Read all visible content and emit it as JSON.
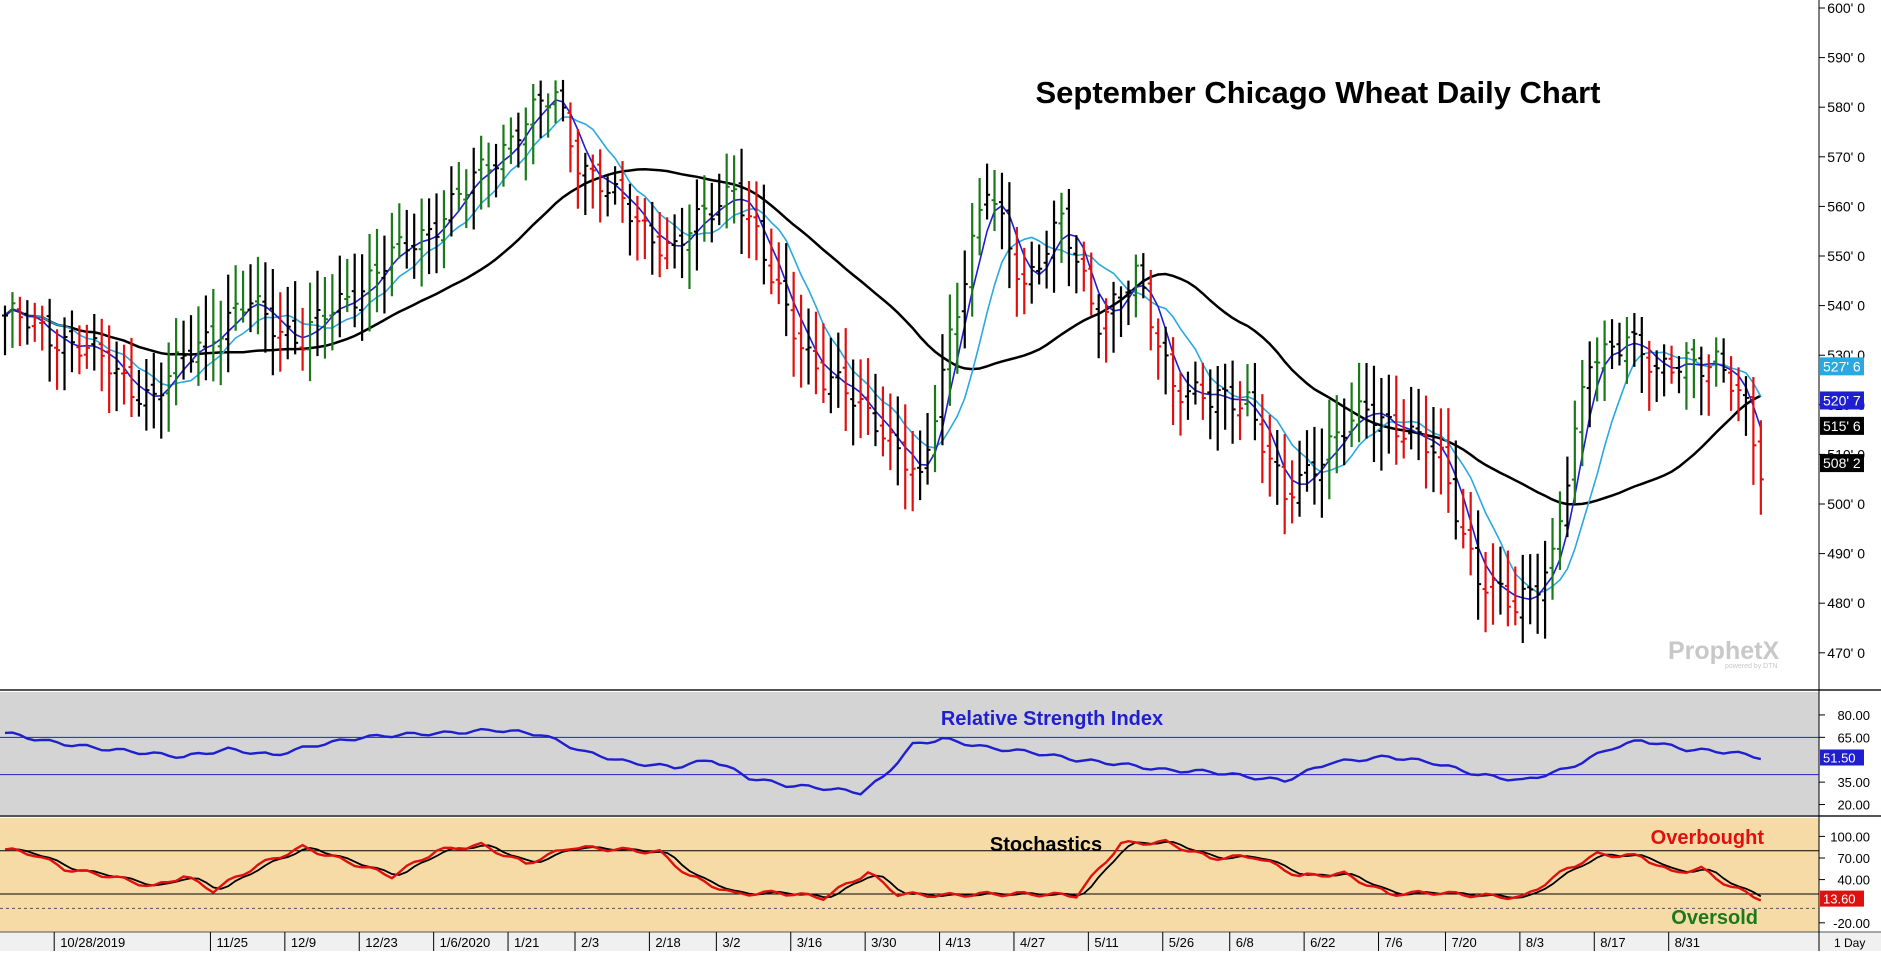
{
  "chart_data": [
    {
      "type": "ohlc-bar",
      "title": "September Chicago Wheat Daily Chart",
      "watermark": "ProphetX",
      "watermark_sub": "powered by DTN",
      "y_range": [
        465,
        600
      ],
      "y_ticks": [
        "600' 0",
        "590' 0",
        "580' 0",
        "570' 0",
        "560' 0",
        "550' 0",
        "540' 0",
        "530' 0",
        "520' 0",
        "510' 0",
        "500' 0",
        "490' 0",
        "480' 0",
        "470' 0"
      ],
      "y_tick_values": [
        600,
        590,
        580,
        570,
        560,
        550,
        540,
        530,
        520,
        510,
        500,
        490,
        480,
        470
      ],
      "price_tags": [
        {
          "label": "527' 6",
          "value": 527.75,
          "color": "#2aa9e0"
        },
        {
          "label": "520' 7",
          "value": 520.875,
          "color": "#1f1fd0"
        },
        {
          "label": "515' 6",
          "value": 515.75,
          "color": "#000000"
        },
        {
          "label": "508' 2",
          "value": 508.25,
          "color": "#000000"
        }
      ],
      "colors": {
        "up": "#1a7a1a",
        "down": "#e01010",
        "neutral": "#000000",
        "ma_fast": "#1f1fd0",
        "ma_mid": "#2aa9e0",
        "ma_slow": "#000000"
      },
      "anchors": [
        {
          "i": 0,
          "c": 538
        },
        {
          "i": 10,
          "c": 532
        },
        {
          "i": 20,
          "c": 521
        },
        {
          "i": 26,
          "c": 533
        },
        {
          "i": 33,
          "c": 540
        },
        {
          "i": 40,
          "c": 533
        },
        {
          "i": 46,
          "c": 542
        },
        {
          "i": 55,
          "c": 553
        },
        {
          "i": 62,
          "c": 563
        },
        {
          "i": 69,
          "c": 576
        },
        {
          "i": 74,
          "c": 582
        },
        {
          "i": 77,
          "c": 570
        },
        {
          "i": 82,
          "c": 561
        },
        {
          "i": 90,
          "c": 551
        },
        {
          "i": 98,
          "c": 565
        },
        {
          "i": 103,
          "c": 545
        },
        {
          "i": 110,
          "c": 525
        },
        {
          "i": 117,
          "c": 518
        },
        {
          "i": 123,
          "c": 503
        },
        {
          "i": 127,
          "c": 535
        },
        {
          "i": 132,
          "c": 563
        },
        {
          "i": 137,
          "c": 545
        },
        {
          "i": 142,
          "c": 556
        },
        {
          "i": 147,
          "c": 538
        },
        {
          "i": 152,
          "c": 545
        },
        {
          "i": 157,
          "c": 525
        },
        {
          "i": 162,
          "c": 520
        },
        {
          "i": 167,
          "c": 522
        },
        {
          "i": 172,
          "c": 500
        },
        {
          "i": 178,
          "c": 513
        },
        {
          "i": 183,
          "c": 518
        },
        {
          "i": 188,
          "c": 516
        },
        {
          "i": 193,
          "c": 508
        },
        {
          "i": 198,
          "c": 486
        },
        {
          "i": 203,
          "c": 478
        },
        {
          "i": 208,
          "c": 490
        },
        {
          "i": 213,
          "c": 528
        },
        {
          "i": 218,
          "c": 535
        },
        {
          "i": 222,
          "c": 525
        },
        {
          "i": 226,
          "c": 530
        },
        {
          "i": 230,
          "c": 528
        },
        {
          "i": 234,
          "c": 519
        },
        {
          "i": 236,
          "c": 508
        }
      ],
      "bar_count": 237
    },
    {
      "type": "line",
      "title": "Relative Strength Index",
      "y_range": [
        15,
        90
      ],
      "y_ticks": [
        "80.00",
        "65.00",
        "35.00",
        "20.00"
      ],
      "y_tick_values": [
        80,
        65,
        35,
        20
      ],
      "reference_lines": [
        65,
        40
      ],
      "current_label": "51.50",
      "current_value": 51.5,
      "colors": {
        "line": "#1f1fd0",
        "bg": "#d4d4d4",
        "ref": "#1f1fd0"
      },
      "points": [
        {
          "i": 0,
          "v": 68
        },
        {
          "i": 6,
          "v": 62
        },
        {
          "i": 12,
          "v": 58
        },
        {
          "i": 18,
          "v": 55
        },
        {
          "i": 24,
          "v": 52
        },
        {
          "i": 30,
          "v": 57
        },
        {
          "i": 36,
          "v": 53
        },
        {
          "i": 42,
          "v": 60
        },
        {
          "i": 48,
          "v": 65
        },
        {
          "i": 54,
          "v": 67
        },
        {
          "i": 60,
          "v": 68
        },
        {
          "i": 66,
          "v": 70
        },
        {
          "i": 72,
          "v": 67
        },
        {
          "i": 78,
          "v": 55
        },
        {
          "i": 84,
          "v": 48
        },
        {
          "i": 90,
          "v": 45
        },
        {
          "i": 95,
          "v": 50
        },
        {
          "i": 100,
          "v": 38
        },
        {
          "i": 105,
          "v": 33
        },
        {
          "i": 110,
          "v": 31
        },
        {
          "i": 115,
          "v": 28
        },
        {
          "i": 118,
          "v": 38
        },
        {
          "i": 122,
          "v": 60
        },
        {
          "i": 126,
          "v": 64
        },
        {
          "i": 132,
          "v": 58
        },
        {
          "i": 138,
          "v": 55
        },
        {
          "i": 144,
          "v": 50
        },
        {
          "i": 150,
          "v": 47
        },
        {
          "i": 156,
          "v": 43
        },
        {
          "i": 162,
          "v": 42
        },
        {
          "i": 168,
          "v": 38
        },
        {
          "i": 172,
          "v": 36
        },
        {
          "i": 178,
          "v": 48
        },
        {
          "i": 186,
          "v": 52
        },
        {
          "i": 192,
          "v": 48
        },
        {
          "i": 198,
          "v": 40
        },
        {
          "i": 204,
          "v": 36
        },
        {
          "i": 210,
          "v": 44
        },
        {
          "i": 216,
          "v": 58
        },
        {
          "i": 220,
          "v": 63
        },
        {
          "i": 226,
          "v": 57
        },
        {
          "i": 232,
          "v": 55
        },
        {
          "i": 236,
          "v": 51.5
        }
      ]
    },
    {
      "type": "line",
      "title": "Stochastics",
      "y_range": [
        -30,
        120
      ],
      "y_ticks": [
        "100.00",
        "70.00",
        "40.00",
        "-20.00"
      ],
      "y_tick_values": [
        100,
        70,
        40,
        -20
      ],
      "reference_lines": [
        80,
        20
      ],
      "dashed_line": 0,
      "current_label": "13.60",
      "current_value": 13.6,
      "annotations": [
        {
          "text": "Overbought",
          "color": "#e01010"
        },
        {
          "text": "Oversold",
          "color": "#1a7a1a"
        }
      ],
      "colors": {
        "k": "#e01010",
        "d": "#000000",
        "bg": "#f7dba6",
        "ref": "#000000"
      },
      "points": [
        {
          "i": 0,
          "v": 82
        },
        {
          "i": 4,
          "v": 75
        },
        {
          "i": 8,
          "v": 55
        },
        {
          "i": 14,
          "v": 45
        },
        {
          "i": 20,
          "v": 30
        },
        {
          "i": 24,
          "v": 45
        },
        {
          "i": 28,
          "v": 25
        },
        {
          "i": 34,
          "v": 60
        },
        {
          "i": 40,
          "v": 85
        },
        {
          "i": 46,
          "v": 65
        },
        {
          "i": 52,
          "v": 45
        },
        {
          "i": 58,
          "v": 80
        },
        {
          "i": 64,
          "v": 88
        },
        {
          "i": 70,
          "v": 62
        },
        {
          "i": 76,
          "v": 85
        },
        {
          "i": 82,
          "v": 82
        },
        {
          "i": 88,
          "v": 78
        },
        {
          "i": 92,
          "v": 45
        },
        {
          "i": 98,
          "v": 20
        },
        {
          "i": 104,
          "v": 22
        },
        {
          "i": 110,
          "v": 15
        },
        {
          "i": 116,
          "v": 50
        },
        {
          "i": 120,
          "v": 20
        },
        {
          "i": 126,
          "v": 18
        },
        {
          "i": 132,
          "v": 20
        },
        {
          "i": 138,
          "v": 20
        },
        {
          "i": 144,
          "v": 18
        },
        {
          "i": 150,
          "v": 90
        },
        {
          "i": 156,
          "v": 92
        },
        {
          "i": 162,
          "v": 70
        },
        {
          "i": 168,
          "v": 72
        },
        {
          "i": 174,
          "v": 45
        },
        {
          "i": 180,
          "v": 48
        },
        {
          "i": 186,
          "v": 20
        },
        {
          "i": 192,
          "v": 22
        },
        {
          "i": 198,
          "v": 18
        },
        {
          "i": 204,
          "v": 15
        },
        {
          "i": 210,
          "v": 55
        },
        {
          "i": 214,
          "v": 75
        },
        {
          "i": 220,
          "v": 72
        },
        {
          "i": 224,
          "v": 50
        },
        {
          "i": 228,
          "v": 55
        },
        {
          "i": 232,
          "v": 30
        },
        {
          "i": 236,
          "v": 13.6
        }
      ]
    }
  ],
  "x_axis": {
    "labels": [
      "10/28/2019",
      "11/25",
      "12/9",
      "12/23",
      "1/6/2020",
      "1/21",
      "2/3",
      "2/18",
      "3/2",
      "3/16",
      "3/30",
      "4/13",
      "4/27",
      "5/11",
      "5/26",
      "6/8",
      "6/22",
      "7/6",
      "7/20",
      "8/3",
      "8/17",
      "8/31"
    ],
    "label_idx": [
      5,
      26,
      36,
      46,
      56,
      66,
      75,
      85,
      94,
      104,
      114,
      124,
      134,
      144,
      154,
      163,
      173,
      183,
      192,
      202,
      212,
      222
    ],
    "period_label": "1 Day"
  }
}
